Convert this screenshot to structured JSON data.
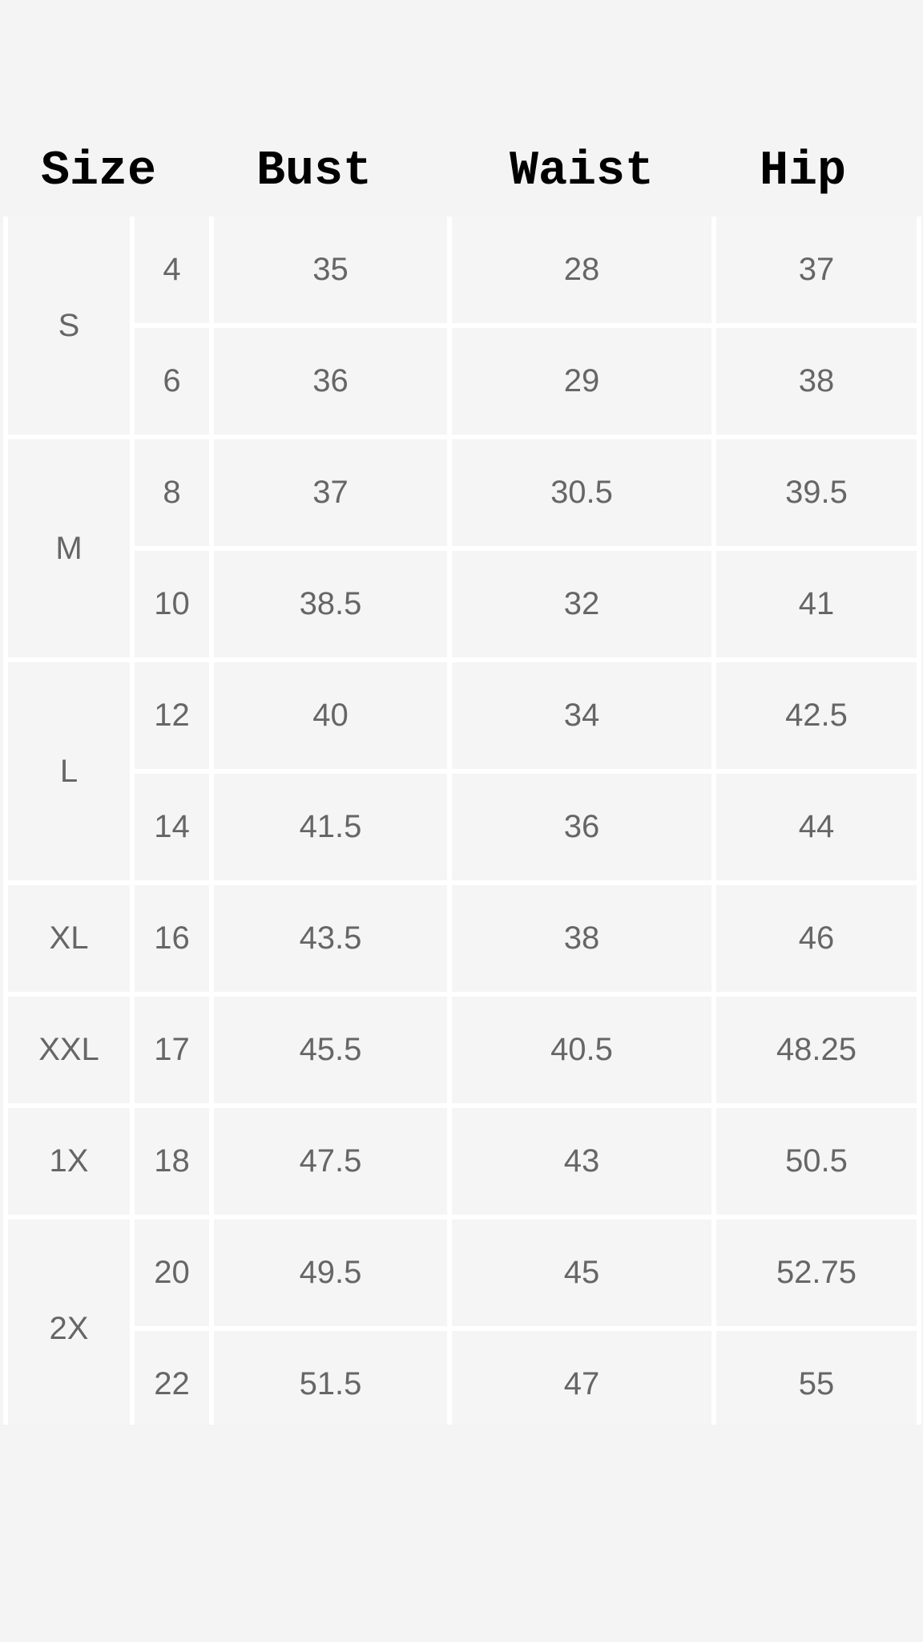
{
  "headers": {
    "size": "Size",
    "bust": "Bust",
    "waist": "Waist",
    "hip": "Hip"
  },
  "groups": [
    {
      "label": "S",
      "rows": [
        {
          "num": "4",
          "bust": "35",
          "waist": "28",
          "hip": "37"
        },
        {
          "num": "6",
          "bust": "36",
          "waist": "29",
          "hip": "38"
        }
      ]
    },
    {
      "label": "M",
      "rows": [
        {
          "num": "8",
          "bust": "37",
          "waist": "30.5",
          "hip": "39.5"
        },
        {
          "num": "10",
          "bust": "38.5",
          "waist": "32",
          "hip": "41"
        }
      ]
    },
    {
      "label": "L",
      "rows": [
        {
          "num": "12",
          "bust": "40",
          "waist": "34",
          "hip": "42.5"
        },
        {
          "num": "14",
          "bust": "41.5",
          "waist": "36",
          "hip": "44"
        }
      ]
    },
    {
      "label": "XL",
      "rows": [
        {
          "num": "16",
          "bust": "43.5",
          "waist": "38",
          "hip": "46"
        }
      ]
    },
    {
      "label": "XXL",
      "rows": [
        {
          "num": "17",
          "bust": "45.5",
          "waist": "40.5",
          "hip": "48.25"
        }
      ]
    },
    {
      "label": "1X",
      "rows": [
        {
          "num": "18",
          "bust": "47.5",
          "waist": "43",
          "hip": "50.5"
        }
      ]
    },
    {
      "label": "2X",
      "rows": [
        {
          "num": "20",
          "bust": "49.5",
          "waist": "45",
          "hip": "52.75"
        },
        {
          "num": "22",
          "bust": "51.5",
          "waist": "47",
          "hip": "55"
        }
      ]
    }
  ]
}
